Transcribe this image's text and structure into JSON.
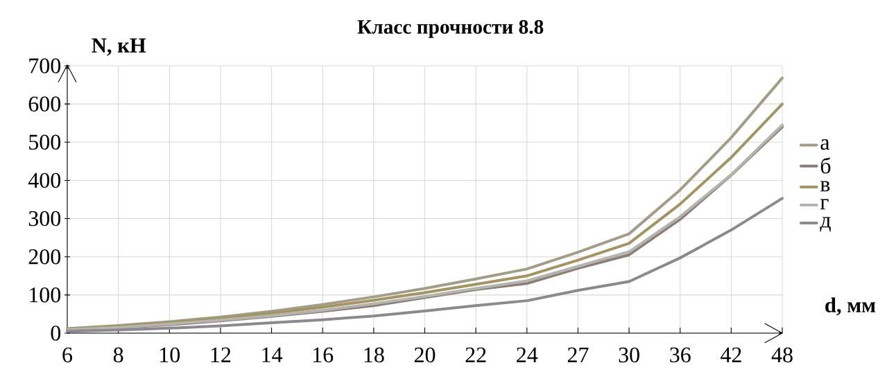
{
  "chart_data": {
    "type": "line",
    "title": "Класс прочности 8.8",
    "xlabel": "d, мм",
    "ylabel": "N, кН",
    "categories": [
      "6",
      "8",
      "10",
      "12",
      "14",
      "16",
      "18",
      "20",
      "22",
      "24",
      "27",
      "30",
      "36",
      "42",
      "48"
    ],
    "series": [
      {
        "name": "а",
        "color": "#a39c88",
        "values": [
          12,
          20,
          30,
          42,
          57,
          75,
          95,
          117,
          142,
          168,
          212,
          260,
          375,
          512,
          668
        ]
      },
      {
        "name": "б",
        "color": "#8c7e76",
        "values": [
          8,
          14,
          22,
          32,
          44,
          57,
          72,
          93,
          114,
          130,
          170,
          205,
          298,
          414,
          540
        ]
      },
      {
        "name": "в",
        "color": "#a39464",
        "values": [
          11,
          18,
          27,
          38,
          52,
          68,
          86,
          106,
          128,
          150,
          191,
          235,
          338,
          460,
          600
        ]
      },
      {
        "name": "г",
        "color": "#b4b5ae",
        "values": [
          9,
          15,
          24,
          34,
          46,
          60,
          77,
          96,
          117,
          137,
          175,
          213,
          305,
          415,
          545
        ]
      },
      {
        "name": "д",
        "color": "#8e878f",
        "values": [
          5,
          8,
          13,
          19,
          27,
          35,
          45,
          58,
          72,
          85,
          112,
          135,
          197,
          270,
          353
        ]
      }
    ],
    "ylim": [
      0,
      700
    ],
    "yticks": [
      0,
      100,
      200,
      300,
      400,
      500,
      600,
      700
    ],
    "grid": true,
    "legend": "right",
    "marker": "none",
    "line_style": "solid"
  }
}
